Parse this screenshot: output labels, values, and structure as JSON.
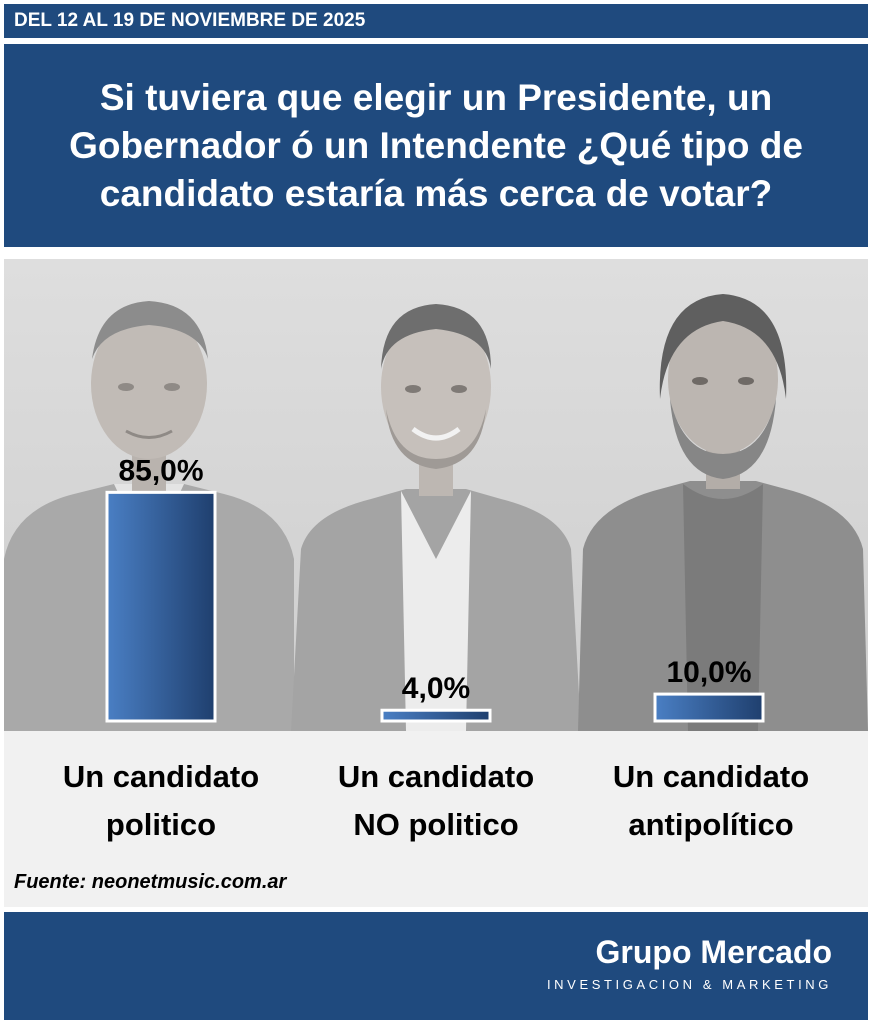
{
  "header": {
    "date_range": "DEL 12 AL 19 DE NOVIEMBRE DE 2025",
    "question": "Si tuviera que elegir un Presidente, un Gobernador ó un Intendente ¿Qué tipo de candidato estaría más cerca de votar?"
  },
  "chart_data": {
    "type": "bar",
    "categories": [
      "Un candidato\npolitico",
      "Un candidato\nNO politico",
      "Un candidato\nantipolítico"
    ],
    "values": [
      85.0,
      4.0,
      10.0
    ],
    "data_labels": [
      "85,0%",
      "4,0%",
      "10,0%"
    ],
    "title": "",
    "xlabel": "",
    "ylabel": "",
    "ylim": [
      0,
      100
    ],
    "grid": false,
    "legend": "none",
    "colors": {
      "bar_dark": "#1f3f6e",
      "bar_light": "#4a7fc4",
      "bar_border": "#ffffff"
    }
  },
  "source": "Fuente: neonetmusic.com.ar",
  "footer": {
    "brand_name": "Grupo Mercado",
    "brand_subtitle": "INVESTIGACION & MARKETING"
  },
  "background": {
    "image_icons": [
      "politician-photo-icon",
      "young-man-photo-icon",
      "bearded-man-photo-icon"
    ]
  },
  "colors": {
    "primary": "#1f4a7e",
    "panel": "#f1f1f1"
  }
}
